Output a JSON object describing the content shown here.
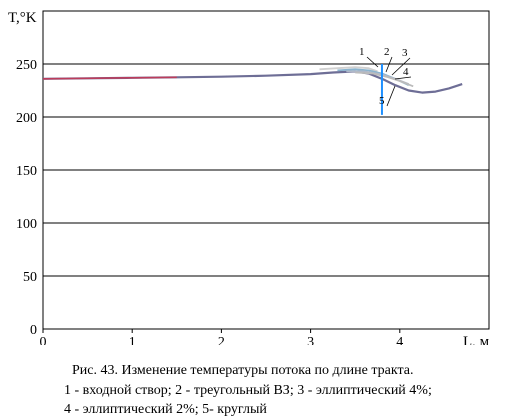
{
  "chart_data": {
    "type": "line",
    "ylabel": "T,°K",
    "xlabel": "L, м",
    "xlim": [
      0,
      5
    ],
    "ylim": [
      0,
      300
    ],
    "x_ticks": [
      0,
      1,
      2,
      3,
      4
    ],
    "y_ticks": [
      0,
      50,
      100,
      150,
      200,
      250
    ],
    "grid": "horizontal",
    "series": [
      {
        "name": "1",
        "color": "#d0d0d0",
        "x": [
          3.1,
          3.3,
          3.5,
          3.65,
          3.75
        ],
        "y": [
          245,
          246,
          247,
          246,
          243
        ]
      },
      {
        "name": "2",
        "color": "#8ab4cf",
        "x": [
          3.3,
          3.5,
          3.65,
          3.8,
          3.95,
          4.1
        ],
        "y": [
          244,
          245,
          244,
          241,
          236,
          230
        ]
      },
      {
        "name": "3",
        "color": "#b0b8c8",
        "x": [
          3.4,
          3.6,
          3.8,
          3.95,
          4.1
        ],
        "y": [
          243,
          243,
          240,
          236,
          231
        ]
      },
      {
        "name": "4",
        "color": "#bbbbbb",
        "x": [
          3.5,
          3.7,
          3.85,
          4.0,
          4.15
        ],
        "y": [
          242,
          241,
          238,
          234,
          229
        ]
      },
      {
        "name": "5",
        "color": "#6e6e96",
        "x": [
          0,
          0.5,
          1.0,
          1.5,
          2.0,
          2.5,
          3.0,
          3.25,
          3.5,
          3.65,
          3.8,
          3.95,
          4.1,
          4.25,
          4.4,
          4.55,
          4.7
        ],
        "y": [
          236,
          236.5,
          237,
          237.5,
          238,
          239,
          240.5,
          242,
          243,
          241,
          236,
          230,
          225,
          223,
          224,
          227,
          231
        ]
      }
    ],
    "inlet_marker": {
      "x": 3.8,
      "y_from": 202,
      "y_to": 250,
      "color": "#1e90ff"
    },
    "start_color": "#d0304c"
  },
  "caption": {
    "line1": "Рис. 43. Изменение температуры потока по длине тракта.",
    "line2": "1 - входной створ; 2 - треугольный ВЗ; 3 - эллиптический 4%;",
    "line3": "4 - эллиптический 2%; 5- круглый"
  }
}
